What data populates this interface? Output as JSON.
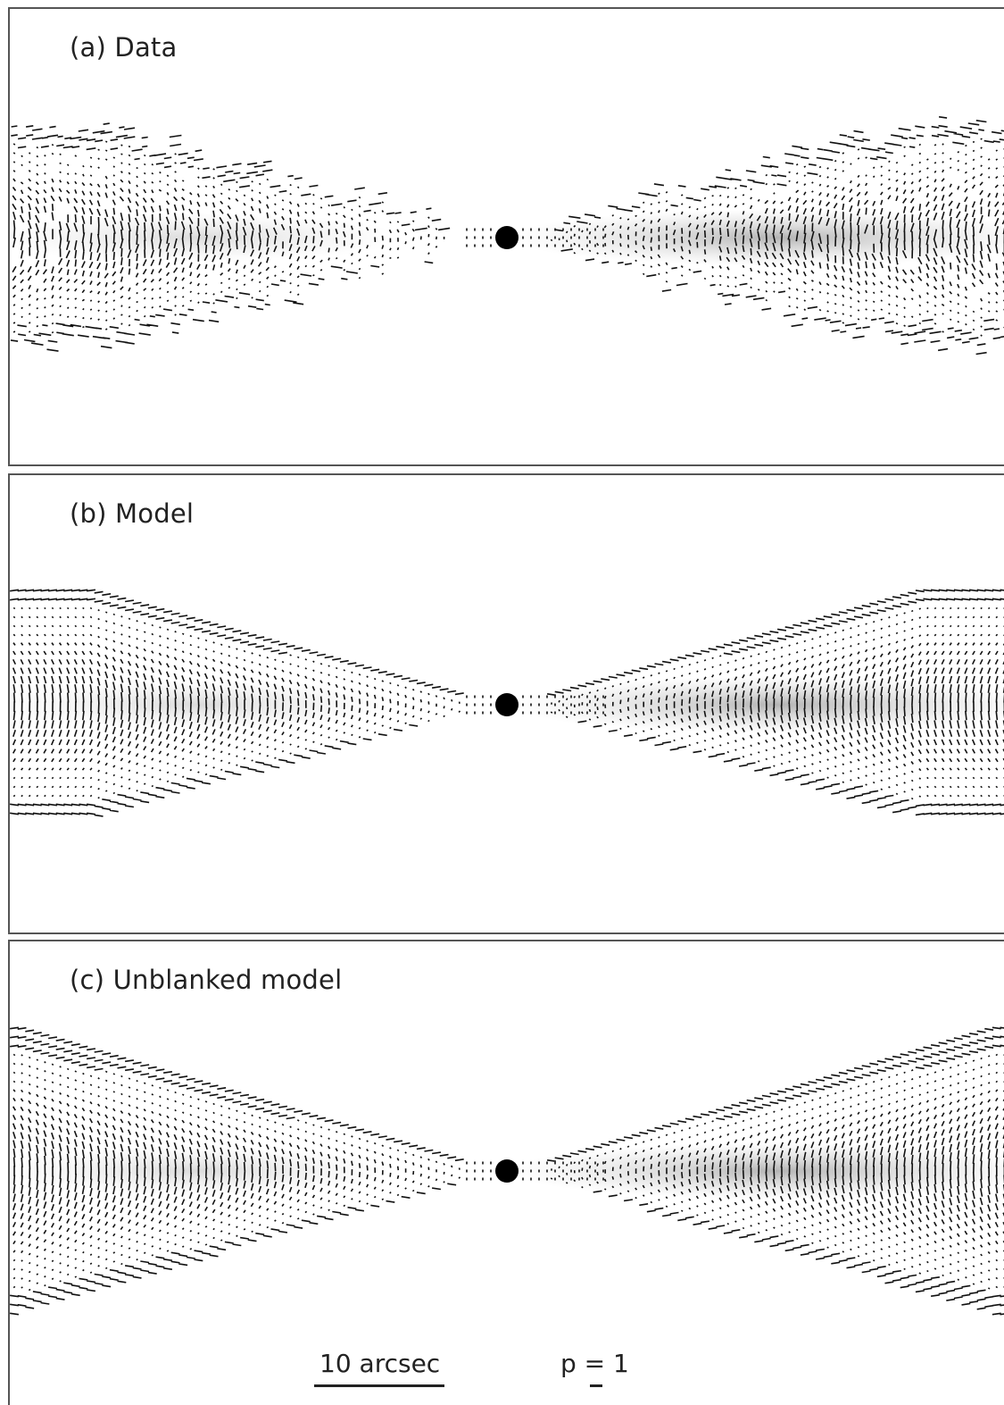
{
  "panels": [
    {
      "id": "a",
      "label": "(a) Data",
      "kind": "data"
    },
    {
      "id": "b",
      "label": "(b) Model",
      "kind": "model"
    },
    {
      "id": "c",
      "label": "(c) Unblanked model",
      "kind": "unblanked"
    }
  ],
  "scale_bar": {
    "label": "10 arcsec"
  },
  "vector_key": {
    "label": "p = 1"
  }
}
